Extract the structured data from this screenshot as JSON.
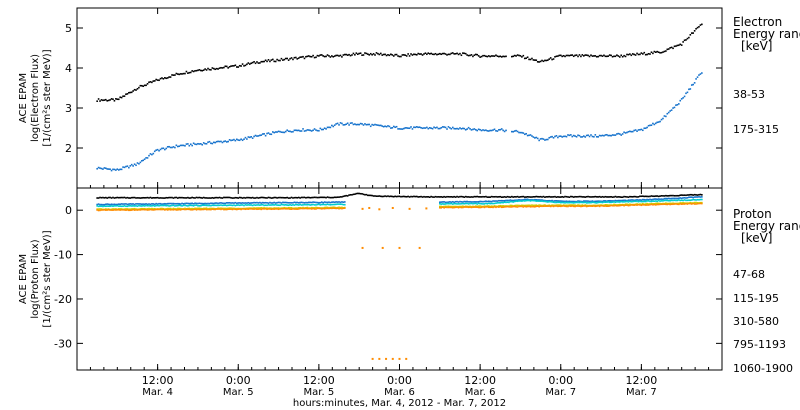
{
  "chart_data": [
    {
      "type": "scatter",
      "ylabel_lines": [
        "ACE EPAM",
        "log(Electron Flux)",
        "[1/(cm²s ster MeV)]"
      ],
      "ylim": [
        1,
        5.5
      ],
      "y_ticks": [
        2,
        3,
        4,
        5
      ],
      "legend_title_lines": [
        "Electron",
        "Energy range",
        "[keV]"
      ],
      "series": [
        {
          "name": "38-53",
          "color": "#000000",
          "x": [
            -9,
            -6,
            -3,
            0,
            3,
            6,
            9,
            12,
            15,
            18,
            21,
            24,
            27,
            30,
            33,
            36,
            39,
            42,
            45,
            48,
            51,
            54,
            57,
            60,
            63,
            66,
            69,
            72,
            75,
            78,
            81
          ],
          "y": [
            3.2,
            3.2,
            3.5,
            3.7,
            3.85,
            3.95,
            4.0,
            4.05,
            4.15,
            4.2,
            4.25,
            4.3,
            4.3,
            4.35,
            4.35,
            4.3,
            4.35,
            4.35,
            4.35,
            4.3,
            4.3,
            4.3,
            4.15,
            4.3,
            4.3,
            4.3,
            4.3,
            4.35,
            4.4,
            4.6,
            5.1
          ]
        },
        {
          "name": "175-315",
          "color": "#1874cd",
          "x": [
            -9,
            -6,
            -3,
            0,
            3,
            6,
            9,
            12,
            15,
            18,
            21,
            24,
            27,
            30,
            33,
            36,
            39,
            42,
            45,
            48,
            51,
            54,
            57,
            60,
            63,
            66,
            69,
            72,
            75,
            78,
            81
          ],
          "y": [
            1.5,
            1.45,
            1.6,
            1.95,
            2.05,
            2.1,
            2.15,
            2.2,
            2.3,
            2.4,
            2.45,
            2.45,
            2.6,
            2.6,
            2.55,
            2.5,
            2.5,
            2.5,
            2.5,
            2.45,
            2.45,
            2.4,
            2.2,
            2.3,
            2.3,
            2.3,
            2.35,
            2.45,
            2.7,
            3.2,
            3.9
          ]
        }
      ]
    },
    {
      "type": "scatter",
      "ylabel_lines": [
        "ACE EPAM",
        "log(Proton Flux)",
        "[1/(cm²s ster MeV)]"
      ],
      "ylim": [
        -36,
        5
      ],
      "y_ticks": [
        0,
        -10,
        -20,
        -30
      ],
      "legend_title_lines": [
        "Proton",
        "Energy range",
        "[keV]"
      ],
      "gap_x": [
        28,
        42
      ],
      "series": [
        {
          "name": "47-68",
          "color": "#000000",
          "start": 3.0,
          "end": 3.5,
          "x": [
            -9,
            0,
            10,
            20,
            27,
            30,
            32,
            35,
            40,
            45,
            50,
            55,
            60,
            65,
            70,
            75,
            81
          ],
          "y": [
            2.8,
            2.8,
            2.8,
            2.8,
            2.9,
            3.8,
            3.2,
            3.1,
            3.0,
            3.0,
            3.0,
            3.0,
            3.0,
            3.0,
            3.0,
            3.2,
            3.5
          ]
        },
        {
          "name": "115-195",
          "color": "#1874cd",
          "x": [
            -9,
            0,
            10,
            20,
            27,
            42,
            50,
            55,
            60,
            65,
            70,
            75,
            81
          ],
          "y": [
            1.3,
            1.4,
            1.6,
            1.7,
            1.8,
            1.8,
            2.0,
            2.4,
            2.0,
            2.0,
            2.2,
            2.5,
            3.0
          ]
        },
        {
          "name": "310-580",
          "color": "#00cccc",
          "x": [
            -9,
            0,
            10,
            20,
            27,
            42,
            50,
            55,
            60,
            65,
            70,
            75,
            81
          ],
          "y": [
            0.9,
            1.0,
            1.1,
            1.2,
            1.3,
            1.4,
            1.5,
            2.2,
            1.7,
            1.7,
            1.9,
            2.1,
            2.4
          ]
        },
        {
          "name": "795-1193",
          "color": "#cccc00",
          "x": [
            -9,
            0,
            10,
            20,
            27,
            42,
            50,
            55,
            60,
            65,
            70,
            75,
            81
          ],
          "y": [
            0.2,
            0.3,
            0.4,
            0.5,
            0.6,
            0.8,
            0.9,
            1.1,
            1.1,
            1.1,
            1.3,
            1.5,
            1.7
          ]
        },
        {
          "name": "1060-1900",
          "color": "#ff8c00",
          "x": [
            -9,
            0,
            10,
            20,
            27,
            42,
            50,
            55,
            60,
            65,
            70,
            75,
            81
          ],
          "y": [
            0.0,
            0.1,
            0.2,
            0.3,
            0.4,
            0.6,
            0.7,
            0.8,
            0.9,
            0.9,
            1.1,
            1.3,
            1.5
          ]
        }
      ],
      "sparse_points": [
        {
          "x": 30.5,
          "y": 0.3,
          "color": "#ff8c00"
        },
        {
          "x": 31.5,
          "y": 0.5,
          "color": "#ff8c00"
        },
        {
          "x": 33.0,
          "y": 0.2,
          "color": "#ff8c00"
        },
        {
          "x": 35.0,
          "y": 0.5,
          "color": "#ff8c00"
        },
        {
          "x": 37.5,
          "y": 0.3,
          "color": "#ff8c00"
        },
        {
          "x": 40.0,
          "y": 0.4,
          "color": "#ff8c00"
        },
        {
          "x": 30.5,
          "y": -8.5,
          "color": "#ff8c00"
        },
        {
          "x": 33.5,
          "y": -8.5,
          "color": "#ff8c00"
        },
        {
          "x": 36.0,
          "y": -8.5,
          "color": "#ff8c00"
        },
        {
          "x": 39.0,
          "y": -8.5,
          "color": "#ff8c00"
        },
        {
          "x": 32.0,
          "y": -33.5,
          "color": "#ff8c00"
        },
        {
          "x": 33.0,
          "y": -33.5,
          "color": "#ff8c00"
        },
        {
          "x": 34.0,
          "y": -33.5,
          "color": "#ff8c00"
        },
        {
          "x": 35.0,
          "y": -33.5,
          "color": "#ff8c00"
        },
        {
          "x": 36.0,
          "y": -33.5,
          "color": "#ff8c00"
        },
        {
          "x": 37.0,
          "y": -33.5,
          "color": "#ff8c00"
        }
      ]
    }
  ],
  "x_axis": {
    "xlim": [
      -12,
      84
    ],
    "ticks": [
      {
        "x": 0,
        "time": "12:00",
        "date": "Mar. 4"
      },
      {
        "x": 12,
        "time": "0:00",
        "date": "Mar. 5"
      },
      {
        "x": 24,
        "time": "12:00",
        "date": "Mar. 5"
      },
      {
        "x": 36,
        "time": "0:00",
        "date": "Mar. 6"
      },
      {
        "x": 48,
        "time": "12:00",
        "date": "Mar. 6"
      },
      {
        "x": 60,
        "time": "0:00",
        "date": "Mar. 7"
      },
      {
        "x": 72,
        "time": "12:00",
        "date": "Mar. 7"
      }
    ],
    "label": "hours:minutes, Mar. 4, 2012 - Mar. 7, 2012"
  }
}
